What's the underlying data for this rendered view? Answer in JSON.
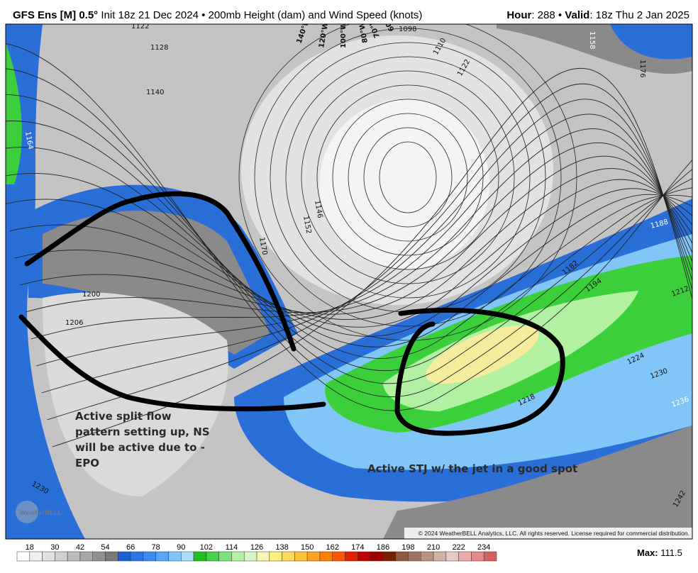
{
  "header": {
    "title": "GFS Ens [M] 0.5°",
    "subtitle": "Init 18z 21 Dec 2024 • 200mb Height (dam) and Wind Speed (knots)",
    "hour_label": "Hour",
    "hour_text": ": 288 • ",
    "valid_label": "Valid",
    "valid_text": ": 18z Thu 2 Jan 2025"
  },
  "map": {
    "contour_labels": [
      "1122",
      "1128",
      "1140",
      "1164",
      "1200",
      "1206",
      "1230",
      "1170",
      "1146",
      "1152",
      "1110",
      "1122",
      "1098",
      "1158",
      "1176",
      "1188",
      "1182",
      "1194",
      "1212",
      "1224",
      "1230",
      "1236",
      "1218",
      "1242"
    ],
    "longitude_labels": [
      "140°W",
      "120°W",
      "100°W",
      "80°W",
      "70°W",
      "60°W"
    ],
    "annotations": [
      {
        "lines": [
          "Active split flow",
          "pattern setting up, NS",
          "will be active due to -",
          "EPO"
        ]
      },
      {
        "lines": [
          "Active STJ w/ the jet in a good spot"
        ]
      }
    ],
    "copyright": "© 2024 WeatherBELL Analytics, LLC. All rights reserved. License required for commercial distribution.",
    "logo": "WeatherBELL"
  },
  "colorbar": {
    "ticks": [
      18,
      30,
      42,
      54,
      66,
      78,
      90,
      102,
      114,
      126,
      138,
      150,
      162,
      174,
      186,
      198,
      210,
      222,
      234
    ],
    "colors": [
      "#ffffff",
      "#f0f0f0",
      "#e0e0e0",
      "#d0d0d0",
      "#bdbdbd",
      "#a8a8a8",
      "#909090",
      "#7a7a7a",
      "#1f5fd6",
      "#2b76e6",
      "#3a8cf0",
      "#56a6f5",
      "#82c6f8",
      "#a9ddfa",
      "#22bf22",
      "#45d045",
      "#7fe07f",
      "#b2f0a2",
      "#d9f7c2",
      "#f6f5b3",
      "#fff082",
      "#ffd95e",
      "#ffc13e",
      "#ffa31e",
      "#ff8000",
      "#ff5400",
      "#e02000",
      "#c00000",
      "#9e0000",
      "#7e1e00",
      "#8b5a40",
      "#a27262",
      "#ba9282",
      "#d2b2a2",
      "#eac8c8",
      "#f0aaaa",
      "#e48888",
      "#d46262"
    ],
    "max_label": "Max:",
    "max_value": 111.5
  }
}
